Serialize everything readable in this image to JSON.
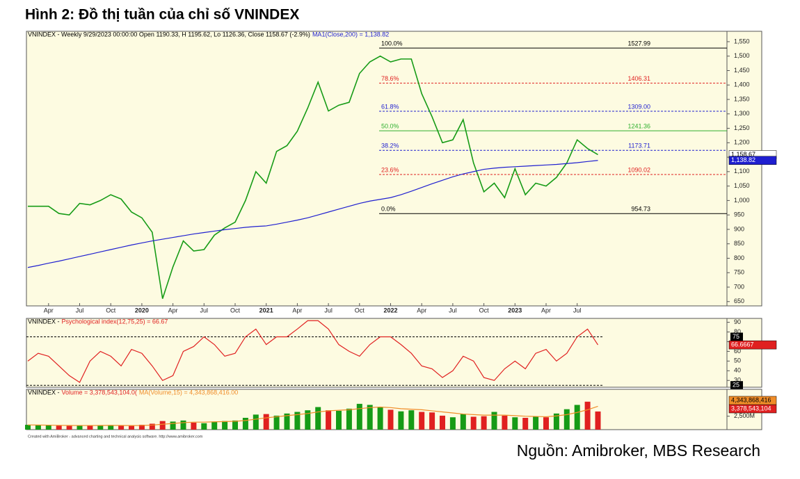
{
  "page_title": "Hình 2:  Đồ thị tuần của chỉ số VNINDEX",
  "source": "Nguồn:  Amibroker, MBS Research",
  "credit": "Created with AmiBroker - advanced charting and technical analysis software. http://www.amibroker.com",
  "chart_data": [
    {
      "type": "line",
      "header": [
        {
          "text": "VNINDEX - Weekly 9/29/2023 00:00:00 Open 1190.33, H 1195.62, Lo 1126.36, Close 1158.67 (-2.9%)",
          "color": "#000000"
        },
        {
          "text": "MA1(Close,200) = 1,138.82",
          "color": "#1f1fd0"
        }
      ],
      "categories": [
        null,
        null,
        "Apr",
        null,
        null,
        "Jul",
        null,
        null,
        "Oct",
        null,
        null,
        "2020",
        null,
        null,
        "Apr",
        null,
        null,
        "Jul",
        null,
        null,
        "Oct",
        null,
        null,
        "2021",
        null,
        null,
        "Apr",
        null,
        null,
        "Jul",
        null,
        null,
        "Oct",
        null,
        null,
        "2022",
        null,
        null,
        "Apr",
        null,
        null,
        "Jul",
        null,
        null,
        "Oct",
        null,
        null,
        "2023",
        null,
        null,
        "Apr",
        null,
        null,
        "Jul",
        null,
        null
      ],
      "series": [
        {
          "name": "VNINDEX",
          "color": "#169b16",
          "last_label": "1,158.67",
          "values": [
            980,
            980,
            980,
            955,
            950,
            990,
            985,
            1000,
            1020,
            1005,
            960,
            940,
            890,
            660,
            770,
            860,
            825,
            830,
            880,
            905,
            925,
            1000,
            1100,
            1060,
            1170,
            1190,
            1240,
            1320,
            1410,
            1310,
            1330,
            1340,
            1440,
            1480,
            1500,
            1480,
            1490,
            1490,
            1370,
            1290,
            1200,
            1210,
            1280,
            1130,
            1030,
            1060,
            1010,
            1110,
            1020,
            1060,
            1050,
            1080,
            1130,
            1210,
            1180,
            1158.67
          ]
        },
        {
          "name": "MA1(Close,200)",
          "color": "#1f1fd0",
          "last_label": "1,138.82",
          "values": [
            768,
            775,
            783,
            790,
            798,
            806,
            814,
            822,
            830,
            838,
            846,
            853,
            860,
            866,
            872,
            878,
            884,
            889,
            894,
            899,
            903,
            907,
            910,
            912,
            918,
            925,
            932,
            940,
            950,
            960,
            970,
            980,
            990,
            998,
            1004,
            1010,
            1020,
            1032,
            1045,
            1058,
            1070,
            1082,
            1092,
            1100,
            1108,
            1112,
            1115,
            1117,
            1119,
            1121,
            1123,
            1125,
            1128,
            1131,
            1135,
            1138.82
          ]
        }
      ],
      "levels": [
        {
          "label": "100.0%",
          "value": 1527.99,
          "color": "#000000"
        },
        {
          "label": "78.6%",
          "value": 1406.31,
          "color": "#e02020"
        },
        {
          "label": "61.8%",
          "value": 1309,
          "value_label": "1309.00",
          "color": "#1f1fd0"
        },
        {
          "label": "50.0%",
          "value": 1241.36,
          "color": "#2fb02f"
        },
        {
          "label": "38.2%",
          "value": 1173.71,
          "color": "#1f1fd0"
        },
        {
          "label": "23.6%",
          "value": 1090.02,
          "color": "#e02020"
        },
        {
          "label": "0.0%",
          "value": 954.73,
          "color": "#000000"
        }
      ],
      "ylim": [
        635,
        1586
      ],
      "yticks": [
        650,
        700,
        750,
        800,
        850,
        900,
        950,
        {
          "value": 1000,
          "label": "1,000"
        },
        {
          "value": 1050,
          "label": "1,050"
        },
        {
          "value": 1100,
          "label": "1,100"
        },
        {
          "value": 1150,
          "label": "1,150"
        },
        {
          "value": 1200,
          "label": "1,200"
        },
        {
          "value": 1250,
          "label": "1,250"
        },
        {
          "value": 1300,
          "label": "1,300"
        },
        {
          "value": 1350,
          "label": "1,350"
        },
        {
          "value": 1400,
          "label": "1,400"
        },
        {
          "value": 1450,
          "label": "1,450"
        },
        {
          "value": 1500,
          "label": "1,500"
        },
        {
          "value": 1550,
          "label": "1,550"
        }
      ]
    },
    {
      "type": "line",
      "header": [
        {
          "text": "VNINDEX - ",
          "color": "#000000"
        },
        {
          "text": "Psychological index(12,75,25) = 66.67",
          "color": "#e02020"
        }
      ],
      "series": [
        {
          "name": "Psychological index",
          "color": "#e02020",
          "last_label": "66.6667",
          "values": [
            50,
            58,
            55,
            45,
            35,
            28,
            50,
            60,
            55,
            45,
            62,
            58,
            45,
            30,
            35,
            60,
            65,
            75,
            67,
            55,
            58,
            75,
            83,
            67,
            75,
            75,
            83,
            91.67,
            91.67,
            83,
            67,
            60,
            55,
            67,
            75,
            75,
            67,
            58,
            45,
            42,
            33,
            40,
            55,
            50,
            33,
            30,
            42,
            50,
            42,
            58,
            62,
            50,
            58,
            75,
            83,
            66.67
          ]
        }
      ],
      "hlines": [
        75,
        25
      ],
      "ylim": [
        23,
        94
      ],
      "yticks": [
        30,
        40,
        50,
        60,
        70,
        80,
        90
      ]
    },
    {
      "type": "bar",
      "header": [
        {
          "text": "VNINDEX - ",
          "color": "#000000"
        },
        {
          "text": "Volume = 3,378,543,104.0(",
          "color": "#e02020"
        },
        {
          "text": "MA(Volume,15) = 4,343,868,416.00",
          "color": "#f08c28"
        }
      ],
      "series": [
        {
          "name": "Volume",
          "color": "#169b16",
          "last_label": "3,378,543,104",
          "values": [
            900000000,
            850000000,
            800000000,
            750000000,
            700000000,
            800000000,
            750000000,
            800000000,
            850000000,
            750000000,
            700000000,
            900000000,
            1100000000,
            1600000000,
            1500000000,
            1700000000,
            1300000000,
            1200000000,
            1500000000,
            1600000000,
            1700000000,
            2200000000,
            2800000000,
            2900000000,
            2600000000,
            3000000000,
            3300000000,
            3600000000,
            4200000000,
            3600000000,
            3500000000,
            3900000000,
            4800000000,
            4600000000,
            4200000000,
            3700000000,
            3400000000,
            3600000000,
            3300000000,
            3200000000,
            2600000000,
            2300000000,
            2900000000,
            2400000000,
            2500000000,
            3300000000,
            2600000000,
            2300000000,
            2200000000,
            2400000000,
            2300000000,
            3000000000,
            3800000000,
            4600000000,
            5200000000,
            3378543104
          ]
        },
        {
          "name": "MA(Volume,15)",
          "color": "#f08c28",
          "last_label": "4,343,868,416",
          "values": [
            880000000,
            860000000,
            830000000,
            800000000,
            780000000,
            770000000,
            770000000,
            780000000,
            790000000,
            780000000,
            760000000,
            780000000,
            850000000,
            1000000000,
            1150000000,
            1300000000,
            1400000000,
            1400000000,
            1450000000,
            1500000000,
            1550000000,
            1700000000,
            1950000000,
            2200000000,
            2400000000,
            2600000000,
            2800000000,
            3000000000,
            3300000000,
            3500000000,
            3600000000,
            3700000000,
            3900000000,
            4100000000,
            4200000000,
            4100000000,
            3900000000,
            3800000000,
            3700000000,
            3500000000,
            3300000000,
            3100000000,
            2900000000,
            2800000000,
            2700000000,
            2700000000,
            2700000000,
            2600000000,
            2500000000,
            2450000000,
            2400000000,
            2550000000,
            2800000000,
            3200000000,
            3700000000,
            4343868416
          ]
        }
      ],
      "ylim": [
        0,
        7500000000
      ],
      "yticks": [
        {
          "value": 2500000000,
          "label": "2,500M"
        }
      ]
    }
  ]
}
